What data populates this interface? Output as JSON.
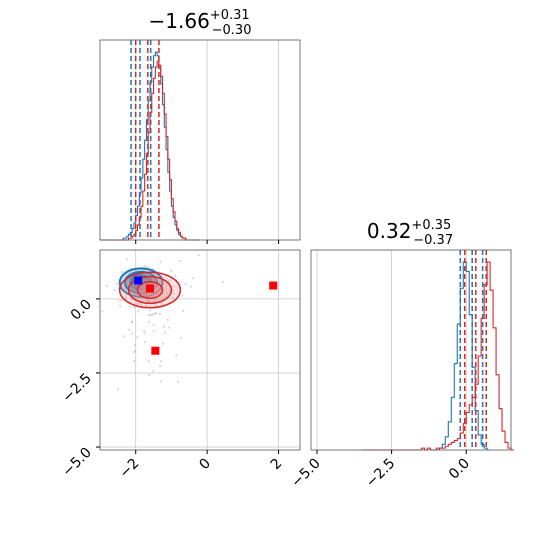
{
  "chart_data": {
    "type": "corner",
    "parameters": [
      {
        "title_main": "−1.66",
        "title_sup": "+0.31",
        "title_sub": "−0.30",
        "median": -1.66
      },
      {
        "title_main": "0.32",
        "title_sup": "+0.35",
        "title_sub": "−0.37",
        "median": 0.32
      }
    ],
    "axes": {
      "x1": {
        "range": [
          -3.0,
          2.6
        ],
        "ticks": [
          -2,
          0,
          2
        ],
        "tick_labels": [
          "−2",
          "0",
          "2"
        ]
      },
      "x2": {
        "range": [
          -5.2,
          1.5
        ],
        "ticks": [
          -5.0,
          -2.5,
          0.0
        ],
        "tick_labels": [
          "−5.0",
          "−2.5",
          "0.0"
        ]
      },
      "y2": {
        "range": [
          -5.1,
          1.65
        ],
        "ticks": [
          0.0,
          -2.5,
          -5.0
        ],
        "tick_labels": [
          "0.0",
          "−2.5",
          "−5.0"
        ]
      }
    },
    "grid": true,
    "series": [
      {
        "color": "#1f77b4",
        "hist1": {
          "start": -3.0,
          "bin": 0.05,
          "counts": [
            0,
            0,
            0,
            0,
            0,
            0,
            0,
            0,
            0,
            0,
            0,
            0,
            0,
            1,
            1,
            2,
            3,
            4,
            6,
            9,
            13,
            18,
            25,
            33,
            43,
            53,
            64,
            74,
            84,
            92,
            98,
            100,
            98,
            92,
            83,
            72,
            60,
            48,
            36,
            26,
            18,
            12,
            8,
            5,
            3,
            2,
            1,
            1,
            0,
            0,
            0,
            0,
            0,
            0,
            0,
            0
          ]
        },
        "quantiles1": [
          -2.13,
          -1.88,
          -1.58
        ],
        "hist2": {
          "start": -1.0,
          "bin": 0.1,
          "counts": [
            0,
            1,
            3,
            7,
            15,
            28,
            46,
            67,
            86,
            100,
            95,
            72,
            44,
            21,
            8,
            3,
            1,
            0
          ]
        },
        "quantiles2": [
          -0.2,
          0.2,
          0.55
        ],
        "scatter_center": [
          -1.85,
          0.55
        ]
      },
      {
        "color": "#d62728",
        "hist1": {
          "start": -3.0,
          "bin": 0.05,
          "counts": [
            0,
            0,
            0,
            0,
            0,
            0,
            0,
            0,
            0,
            0,
            0,
            0,
            0,
            0,
            0,
            0,
            1,
            1,
            2,
            3,
            5,
            8,
            12,
            18,
            26,
            35,
            46,
            57,
            68,
            78,
            86,
            92,
            95,
            93,
            87,
            78,
            67,
            55,
            43,
            32,
            22,
            15,
            10,
            6,
            4,
            2,
            1,
            1,
            0,
            0,
            0,
            0,
            0,
            0,
            0,
            0
          ]
        },
        "quantiles1": [
          -2.0,
          -1.66,
          -1.35
        ],
        "hist2": {
          "start": -3.5,
          "bin": 0.1,
          "counts": [
            0,
            0,
            0,
            0,
            0,
            0,
            0,
            0,
            0,
            0,
            0,
            0,
            0,
            0,
            0,
            0,
            0,
            0,
            0,
            0,
            1,
            0,
            1,
            0,
            0,
            1,
            1,
            1,
            2,
            3,
            4,
            5,
            6,
            9,
            14,
            20,
            24,
            28,
            35,
            50,
            70,
            88,
            100,
            85,
            65,
            40,
            22,
            10,
            4,
            1,
            0
          ]
        },
        "quantiles2": [
          -0.05,
          0.32,
          0.67
        ],
        "scatter_center": [
          -1.6,
          0.3
        ]
      }
    ],
    "markers": [
      {
        "color": "#0000ff",
        "x": -1.93,
        "y": 0.62
      },
      {
        "color": "#ff0000",
        "x": -1.6,
        "y": 0.35
      },
      {
        "color": "#ff0000",
        "x": 1.85,
        "y": 0.45
      },
      {
        "color": "#ff0000",
        "x": -1.45,
        "y": -1.75
      }
    ]
  }
}
